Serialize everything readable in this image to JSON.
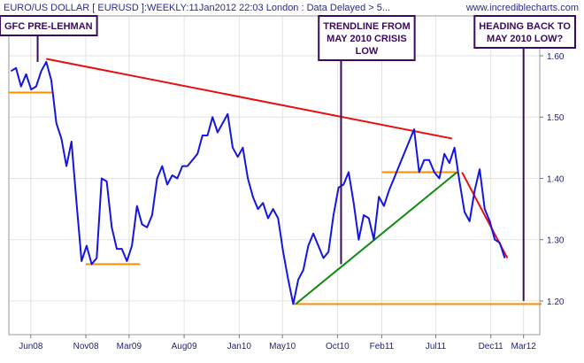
{
  "header": {
    "title": "EURO/US DOLLAR [ EURUSD ]:WEEKLY:11Jan2012 22:03 London : Data Delayed > 5...",
    "site": "www.incrediblecharts.com"
  },
  "chart_data": {
    "type": "line",
    "title": "EURO/US DOLLAR [ EURUSD ]:WEEKLY:11Jan2012 22:03 London : Data Delayed > 5...",
    "xlabel": "",
    "ylabel": "",
    "x_ticks": [
      "Jun08",
      "Nov08",
      "Mar09",
      "Aug09",
      "Jan10",
      "May10",
      "Oct10",
      "Feb11",
      "Jul11",
      "Dec11",
      "Mar12"
    ],
    "y_ticks": [
      "1.20",
      "1.30",
      "1.40",
      "1.50",
      "1.60"
    ],
    "ylim": [
      1.145,
      1.665
    ],
    "x_range": [
      "2008-04-01",
      "2012-04-15"
    ],
    "grid": true,
    "series": [
      {
        "color": "#1515e0",
        "points": [
          [
            "2008-04-07",
            1.575
          ],
          [
            "2008-04-21",
            1.58
          ],
          [
            "2008-05-05",
            1.55
          ],
          [
            "2008-05-19",
            1.57
          ],
          [
            "2008-06-02",
            1.545
          ],
          [
            "2008-06-16",
            1.55
          ],
          [
            "2008-06-30",
            1.575
          ],
          [
            "2008-07-14",
            1.59
          ],
          [
            "2008-07-28",
            1.56
          ],
          [
            "2008-08-11",
            1.49
          ],
          [
            "2008-08-25",
            1.465
          ],
          [
            "2008-09-08",
            1.42
          ],
          [
            "2008-09-22",
            1.46
          ],
          [
            "2008-10-06",
            1.36
          ],
          [
            "2008-10-20",
            1.265
          ],
          [
            "2008-11-03",
            1.29
          ],
          [
            "2008-11-17",
            1.26
          ],
          [
            "2008-12-01",
            1.27
          ],
          [
            "2008-12-15",
            1.4
          ],
          [
            "2008-12-29",
            1.395
          ],
          [
            "2009-01-12",
            1.32
          ],
          [
            "2009-01-26",
            1.285
          ],
          [
            "2009-02-09",
            1.285
          ],
          [
            "2009-02-23",
            1.265
          ],
          [
            "2009-03-09",
            1.29
          ],
          [
            "2009-03-23",
            1.355
          ],
          [
            "2009-04-06",
            1.325
          ],
          [
            "2009-04-20",
            1.32
          ],
          [
            "2009-05-04",
            1.34
          ],
          [
            "2009-05-18",
            1.4
          ],
          [
            "2009-06-01",
            1.42
          ],
          [
            "2009-06-15",
            1.39
          ],
          [
            "2009-06-29",
            1.405
          ],
          [
            "2009-07-13",
            1.4
          ],
          [
            "2009-07-27",
            1.42
          ],
          [
            "2009-08-10",
            1.42
          ],
          [
            "2009-08-24",
            1.43
          ],
          [
            "2009-09-07",
            1.44
          ],
          [
            "2009-09-21",
            1.47
          ],
          [
            "2009-10-05",
            1.47
          ],
          [
            "2009-10-19",
            1.5
          ],
          [
            "2009-11-02",
            1.475
          ],
          [
            "2009-11-16",
            1.49
          ],
          [
            "2009-11-30",
            1.505
          ],
          [
            "2009-12-14",
            1.45
          ],
          [
            "2009-12-28",
            1.435
          ],
          [
            "2010-01-11",
            1.45
          ],
          [
            "2010-01-25",
            1.4
          ],
          [
            "2010-02-08",
            1.37
          ],
          [
            "2010-02-22",
            1.35
          ],
          [
            "2010-03-08",
            1.36
          ],
          [
            "2010-03-22",
            1.335
          ],
          [
            "2010-04-05",
            1.35
          ],
          [
            "2010-04-19",
            1.335
          ],
          [
            "2010-05-03",
            1.28
          ],
          [
            "2010-05-17",
            1.235
          ],
          [
            "2010-05-31",
            1.195
          ],
          [
            "2010-06-14",
            1.235
          ],
          [
            "2010-06-28",
            1.25
          ],
          [
            "2010-07-12",
            1.29
          ],
          [
            "2010-07-26",
            1.31
          ],
          [
            "2010-08-09",
            1.29
          ],
          [
            "2010-08-23",
            1.27
          ],
          [
            "2010-09-06",
            1.28
          ],
          [
            "2010-09-20",
            1.34
          ],
          [
            "2010-10-04",
            1.385
          ],
          [
            "2010-10-18",
            1.39
          ],
          [
            "2010-11-01",
            1.41
          ],
          [
            "2010-11-15",
            1.36
          ],
          [
            "2010-11-29",
            1.3
          ],
          [
            "2010-12-13",
            1.34
          ],
          [
            "2010-12-27",
            1.335
          ],
          [
            "2011-01-10",
            1.3
          ],
          [
            "2011-01-24",
            1.37
          ],
          [
            "2011-02-07",
            1.355
          ],
          [
            "2011-02-21",
            1.38
          ],
          [
            "2011-03-07",
            1.4
          ],
          [
            "2011-03-21",
            1.42
          ],
          [
            "2011-04-04",
            1.44
          ],
          [
            "2011-04-18",
            1.46
          ],
          [
            "2011-05-02",
            1.48
          ],
          [
            "2011-05-16",
            1.41
          ],
          [
            "2011-05-30",
            1.43
          ],
          [
            "2011-06-13",
            1.43
          ],
          [
            "2011-06-27",
            1.41
          ],
          [
            "2011-07-11",
            1.4
          ],
          [
            "2011-07-25",
            1.44
          ],
          [
            "2011-08-08",
            1.425
          ],
          [
            "2011-08-22",
            1.45
          ],
          [
            "2011-09-05",
            1.395
          ],
          [
            "2011-09-19",
            1.345
          ],
          [
            "2011-10-03",
            1.33
          ],
          [
            "2011-10-17",
            1.38
          ],
          [
            "2011-10-31",
            1.415
          ],
          [
            "2011-11-14",
            1.35
          ],
          [
            "2011-11-28",
            1.33
          ],
          [
            "2011-12-12",
            1.3
          ],
          [
            "2011-12-26",
            1.295
          ],
          [
            "2012-01-09",
            1.27
          ]
        ]
      }
    ],
    "trendlines": [
      {
        "color": "#e61010",
        "from": [
          "2008-07-14",
          1.595
        ],
        "to": [
          "2011-08-15",
          1.465
        ]
      },
      {
        "color": "#0f8a0f",
        "from": [
          "2010-06-07",
          1.195
        ],
        "to": [
          "2011-08-29",
          1.41
        ]
      },
      {
        "color": "#e61010",
        "from": [
          "2011-09-12",
          1.41
        ],
        "to": [
          "2012-01-16",
          1.27
        ]
      }
    ],
    "levels": [
      {
        "color": "#ff8c00",
        "value": 1.54,
        "from": "2008-04-01",
        "to": "2008-07-31"
      },
      {
        "color": "#ff8c00",
        "value": 1.26,
        "from": "2008-11-01",
        "to": "2009-03-31"
      },
      {
        "color": "#ff8c00",
        "value": 1.195,
        "from": "2010-06-01",
        "to": "2012-04-20"
      },
      {
        "color": "#ff8c00",
        "value": 1.41,
        "from": "2011-02-01",
        "to": "2011-08-31"
      }
    ],
    "annotations": [
      {
        "text": "GFC PRE-LEHMAN",
        "pointer_date": "2008-06-20",
        "pointer_value": 1.59,
        "box_date": "2008-03-01"
      },
      {
        "text": "TRENDLINE FROM MAY 2010 CRISIS LOW",
        "pointer_date": "2010-10-11",
        "pointer_value": 1.26,
        "box_date": "2010-08-10"
      },
      {
        "text": "HEADING BACK TO MAY 2010 LOW?",
        "pointer_date": "2012-03-01",
        "pointer_value": 1.2,
        "box_date": "2011-11-10"
      }
    ]
  }
}
